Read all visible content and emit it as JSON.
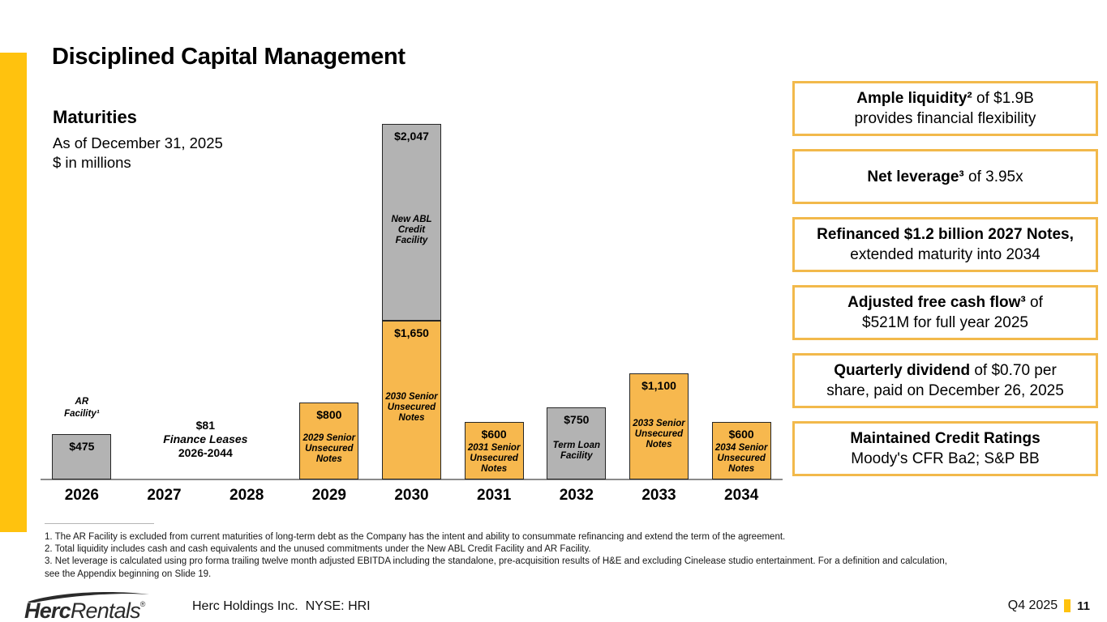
{
  "slide": {
    "title": "Disciplined Capital Management",
    "accent_color": "#FFC20E"
  },
  "chart_header": {
    "title": "Maturities",
    "subtitle_line1": "As of December 31, 2025",
    "subtitle_line2": "$ in millions"
  },
  "chart_data": {
    "type": "bar",
    "stacked": true,
    "title": "Maturities",
    "as_of": "As of December 31, 2025",
    "units": "$ in millions",
    "categories": [
      "2026",
      "2027",
      "2028",
      "2029",
      "2030",
      "2031",
      "2032",
      "2033",
      "2034"
    ],
    "ylim": [
      0,
      3700
    ],
    "grid": false,
    "legend": "none",
    "colors": {
      "orange": "#F7B84E",
      "gray": "#B3B3B3"
    },
    "bars": [
      {
        "category": "2026",
        "above_label": "AR\nFacility¹",
        "segments": [
          {
            "name": "AR Facility",
            "value": 475,
            "label": "$475",
            "color_key": "gray"
          }
        ]
      },
      {
        "category": "2027",
        "segments": []
      },
      {
        "category": "2028",
        "segments": []
      },
      {
        "category": "2029",
        "segments": [
          {
            "name": "2029 Senior Unsecured Notes",
            "value": 800,
            "label": "$800",
            "sublabel": "2029 Senior\nUnsecured\nNotes",
            "color_key": "orange"
          }
        ]
      },
      {
        "category": "2030",
        "segments": [
          {
            "name": "2030 Senior Unsecured Notes",
            "value": 1650,
            "label": "$1,650",
            "sublabel": "2030 Senior\nUnsecured\nNotes",
            "color_key": "orange"
          },
          {
            "name": "New ABL Credit Facility",
            "value": 2047,
            "label": "$2,047",
            "sublabel": "New ABL\nCredit\nFacility",
            "color_key": "gray"
          }
        ]
      },
      {
        "category": "2031",
        "segments": [
          {
            "name": "2031 Senior Unsecured Notes",
            "value": 600,
            "label": "$600",
            "sublabel": "2031 Senior\nUnsecured\nNotes",
            "color_key": "orange"
          }
        ]
      },
      {
        "category": "2032",
        "segments": [
          {
            "name": "Term Loan Facility",
            "value": 750,
            "label": "$750",
            "sublabel": "Term Loan\nFacility",
            "color_key": "gray"
          }
        ]
      },
      {
        "category": "2033",
        "segments": [
          {
            "name": "2033 Senior Unsecured Notes",
            "value": 1100,
            "label": "$1,100",
            "sublabel": "2033 Senior\nUnsecured\nNotes",
            "color_key": "orange"
          }
        ]
      },
      {
        "category": "2034",
        "segments": [
          {
            "name": "2034 Senior Unsecured Notes",
            "value": 600,
            "label": "$600",
            "sublabel": "2034 Senior\nUnsecured\nNotes",
            "color_key": "orange"
          }
        ]
      }
    ],
    "annotation": {
      "value_label": "$81",
      "name": "Finance Leases",
      "range": "2026-2044",
      "value": 81,
      "between": [
        "2027",
        "2028"
      ]
    }
  },
  "callouts": [
    {
      "lines": [
        [
          {
            "text": "Ample liquidity²",
            "bold": true
          },
          {
            "text": " of $1.9B"
          }
        ],
        [
          {
            "text": "provides financial flexibility"
          }
        ]
      ]
    },
    {
      "lines": [
        [
          {
            "text": "Net leverage³",
            "bold": true
          },
          {
            "text": " of 3.95x"
          }
        ]
      ]
    },
    {
      "lines": [
        [
          {
            "text": "Refinanced $1.2 billion 2027 Notes,",
            "bold": true
          }
        ],
        [
          {
            "text": "extended maturity into 2034"
          }
        ]
      ]
    },
    {
      "lines": [
        [
          {
            "text": "Adjusted free cash flow³",
            "bold": true
          },
          {
            "text": " of"
          }
        ],
        [
          {
            "text": "$521M for full year 2025"
          }
        ]
      ]
    },
    {
      "lines": [
        [
          {
            "text": "Quarterly dividend",
            "bold": true
          },
          {
            "text": " of $0.70 per"
          }
        ],
        [
          {
            "text": "share, paid on December 26, 2025"
          }
        ]
      ]
    },
    {
      "lines": [
        [
          {
            "text": "Maintained Credit Ratings",
            "bold": true
          }
        ],
        [
          {
            "text": "Moody's CFR Ba2; S&P BB"
          }
        ]
      ]
    }
  ],
  "footnotes": [
    "1. The AR Facility is excluded from current maturities of long-term debt as the Company has the intent and ability to consummate refinancing and extend the term of the agreement.",
    "2. Total liquidity includes cash and cash equivalents and the unused commitments under the New ABL Credit Facility and AR Facility.",
    "3. Net leverage is calculated using pro forma trailing twelve month adjusted EBITDA including the standalone, pre-acquisition results of H&E and excluding Cinelease studio entertainment. For a definition and calculation,",
    "see the Appendix beginning on Slide 19."
  ],
  "footer": {
    "logo_herc": "Herc",
    "logo_rentals": "Rentals",
    "logo_reg": "®",
    "company": "Herc Holdings Inc.  NYSE: HRI",
    "period": "Q4 2025",
    "page": "11"
  }
}
